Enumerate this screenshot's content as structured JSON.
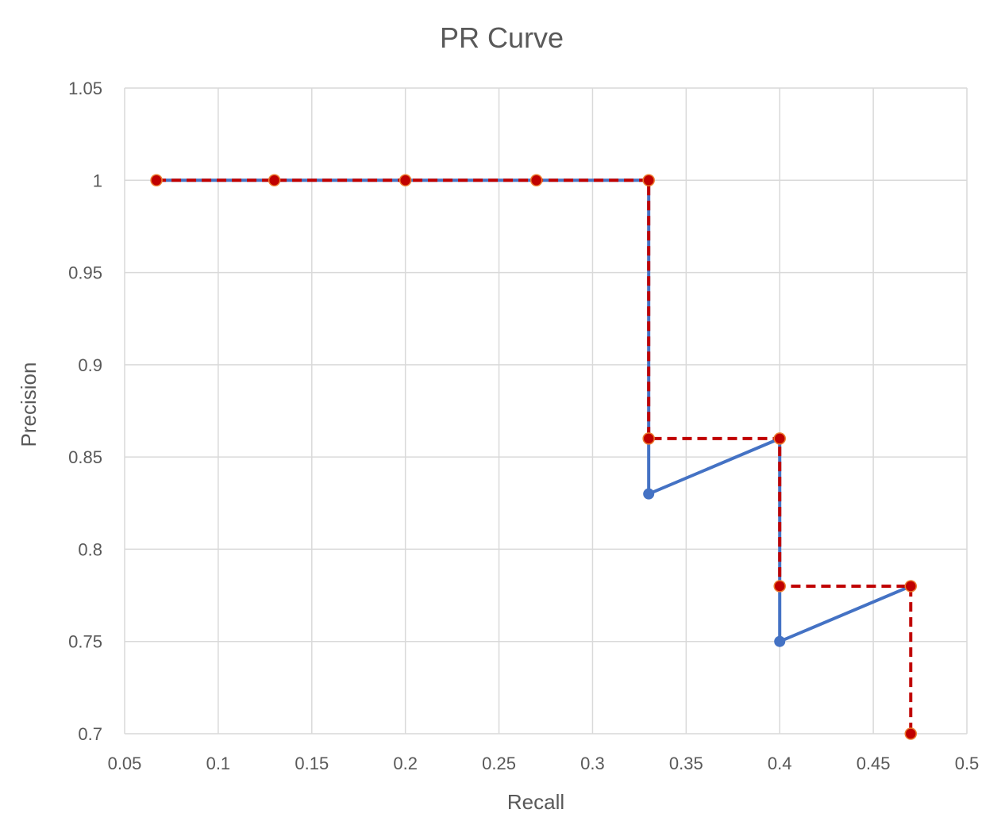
{
  "chart_data": {
    "type": "line",
    "title": "PR Curve",
    "xlabel": "Recall",
    "ylabel": "Precision",
    "xlim": [
      0.05,
      0.5
    ],
    "ylim": [
      0.7,
      1.05
    ],
    "xticks": [
      "0.05",
      "0.1",
      "0.15",
      "0.2",
      "0.25",
      "0.3",
      "0.35",
      "0.4",
      "0.45",
      "0.5"
    ],
    "xtick_values": [
      0.05,
      0.1,
      0.15,
      0.2,
      0.25,
      0.3,
      0.35,
      0.4,
      0.45,
      0.5
    ],
    "yticks": [
      "0.7",
      "0.75",
      "0.8",
      "0.85",
      "0.9",
      "0.95",
      "1",
      "1.05"
    ],
    "ytick_values": [
      0.7,
      0.75,
      0.8,
      0.85,
      0.9,
      0.95,
      1,
      1.05
    ],
    "grid": true,
    "legend": "none",
    "series": [
      {
        "color": "#4472c4",
        "line_style": "solid",
        "x": [
          0.067,
          0.13,
          0.2,
          0.27,
          0.33,
          0.33,
          0.4,
          0.4,
          0.47
        ],
        "y": [
          1,
          1,
          1,
          1,
          1,
          0.83,
          0.86,
          0.75,
          0.78
        ]
      },
      {
        "color": "#c00000",
        "marker_edge_color": "#ed7d31",
        "line_style": "dashed",
        "x": [
          0.067,
          0.13,
          0.2,
          0.27,
          0.33,
          0.33,
          0.4,
          0.4,
          0.47,
          0.47
        ],
        "y": [
          1,
          1,
          1,
          1,
          1,
          0.86,
          0.86,
          0.78,
          0.78,
          0.7
        ]
      }
    ]
  }
}
